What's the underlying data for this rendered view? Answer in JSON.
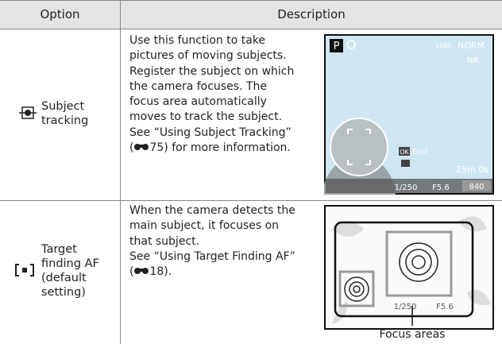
{
  "header": {
    "option": "Option",
    "description": "Description"
  },
  "rows": [
    {
      "option": [
        "Subject",
        "tracking"
      ],
      "description": [
        "Use this function to take",
        "pictures of moving subjects.",
        "Register the subject on which",
        "the camera focuses. The",
        "focus area automatically",
        "moves to track the subject.",
        "See “Using Subject Tracking”"
      ],
      "reference": {
        "before": "(",
        "after": "75) for more information."
      },
      "screen": {
        "mode": "P",
        "size": "1080",
        "quality": "NORM",
        "nr": "NR",
        "ok": "OK",
        "end": "End",
        "time": "25m 0s",
        "shutter": "1/250",
        "aperture": "F5.6",
        "shots": "840"
      }
    },
    {
      "option": [
        "Target",
        "finding AF",
        "(default",
        "setting)"
      ],
      "description": [
        "When the camera detects the",
        "main subject, it focuses on",
        "that subject.",
        "See “Using Target Finding AF”"
      ],
      "reference": {
        "before": "(",
        "after": "18)."
      },
      "screen": {
        "shutter": "1/250",
        "aperture": "F5.6"
      },
      "caption": "Focus areas"
    }
  ]
}
